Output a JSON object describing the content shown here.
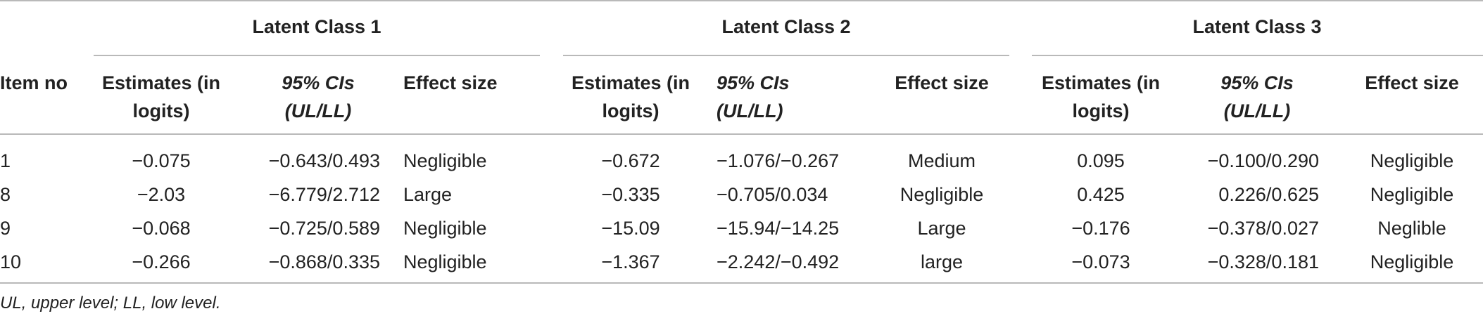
{
  "table": {
    "group_headers": [
      "Latent Class 1",
      "Latent Class 2",
      "Latent Class 3"
    ],
    "col_item": "Item no",
    "col_estimates": [
      "Estimates (in",
      "logits)"
    ],
    "col_ci": [
      "95% CIs",
      "(UL/LL)"
    ],
    "col_effect": "Effect size",
    "rows": [
      {
        "item": "1",
        "c1": [
          "−0.075",
          "−0.643/0.493",
          "Negligible"
        ],
        "c2": [
          "−0.672",
          "−1.076/−0.267",
          "Medium"
        ],
        "c3": [
          "0.095",
          "−0.100/0.290",
          "Negligible"
        ]
      },
      {
        "item": "8",
        "c1": [
          "−2.03",
          "−6.779/2.712",
          "Large"
        ],
        "c2": [
          "−0.335",
          "−0.705/0.034",
          "Negligible"
        ],
        "c3": [
          "0.425",
          "0.226/0.625",
          "Negligible"
        ]
      },
      {
        "item": "9",
        "c1": [
          "−0.068",
          "−0.725/0.589",
          "Negligible"
        ],
        "c2": [
          "−15.09",
          "−15.94/−14.25",
          "Large"
        ],
        "c3": [
          "−0.176",
          "−0.378/0.027",
          "Neglible"
        ]
      },
      {
        "item": "10",
        "c1": [
          "−0.266",
          "−0.868/0.335",
          "Negligible"
        ],
        "c2": [
          "−1.367",
          "−2.242/−0.492",
          "large"
        ],
        "c3": [
          "−0.073",
          "−0.328/0.181",
          "Negligible"
        ]
      }
    ],
    "footnote": "UL, upper level; LL, low level."
  }
}
